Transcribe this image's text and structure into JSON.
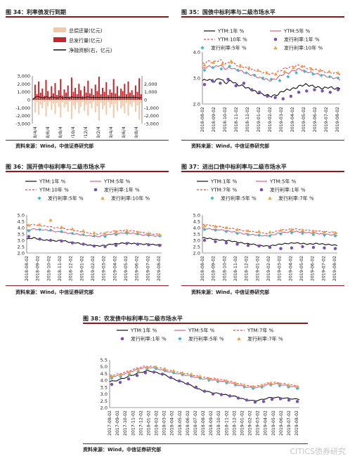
{
  "figures": {
    "fig34": {
      "title": "图 34：利率债发行到期",
      "source": "资料来源：Wind，中信证券研究部"
    },
    "fig35": {
      "title": "图 35：国债中标利率与二级市场水平",
      "source": "资料来源：Wind，中信证券研究部"
    },
    "fig36": {
      "title": "图 36：国开债中标利率与二级市场水平",
      "source": "资料来源：Wind，中信证券研究部"
    },
    "fig37": {
      "title": "图 37：进出口债中标利率与二级市场水平",
      "source": "资料来源：Wind，中信证券研究部"
    },
    "fig38": {
      "title": "图 38：农发债中标利率与二级市场水平",
      "source": "资料来源：Wind，中信证券研究部"
    }
  },
  "watermark": "CITICS债券研究",
  "colors": {
    "accent": "#8b1a1a",
    "ytm_short": "#111111",
    "ytm_mid": "#e0607a",
    "ytm_long": "#e05050",
    "auction_short": "#7a4fb0",
    "auction_mid": "#40b8c8",
    "auction_long": "#f0a040",
    "maturity_bar": "#f2c9a8",
    "issuance_bar": "#c0282e"
  },
  "chart_data": [
    {
      "id": "fig34",
      "type": "bar",
      "x_ticks": [
        "2018/4/4",
        "2018/6/4",
        "2018/8/4",
        "2018/10/4",
        "2018/12/4",
        "2019/2/4",
        "2019/4/4",
        "2019/6/4",
        "2019/8/4"
      ],
      "ylim_left": [
        -3000,
        3000
      ],
      "yticks_left": [
        3000,
        2000,
        1000,
        0,
        -1000,
        -2000,
        -3000
      ],
      "ylim_right": [
        -3000,
        3000
      ],
      "yticks_right": [
        2000,
        1000,
        0,
        -1000,
        -2000,
        -3000
      ],
      "legend": [
        "总偿还量(亿元)",
        "总发行量(亿元)",
        "净融资额(右，亿元)"
      ],
      "series": [
        {
          "name": "总偿还量(亿元)",
          "values": [
            -120,
            -1600,
            -300,
            -1900,
            -600,
            -1100,
            -300,
            -2100,
            -800,
            -200,
            -1300,
            -500,
            -1800,
            -400,
            -900,
            -2200,
            -300,
            -1000,
            -600,
            -1500,
            -200,
            -2400,
            -700,
            -1200,
            -400,
            -1700,
            -900,
            -300,
            -1400,
            -600,
            -2000,
            -500,
            -1100,
            -300,
            -1600,
            -800,
            -2600,
            -400,
            -1200,
            -700,
            -1900,
            -300,
            -1000,
            -600,
            -2300,
            -500,
            -1400,
            -200,
            -1100,
            -800,
            -1700,
            -400,
            -2000,
            -600,
            -900,
            -300,
            -1500,
            -700,
            -2500,
            -400
          ]
        },
        {
          "name": "总发行量(亿元)",
          "values": [
            200,
            1900,
            700,
            2300,
            900,
            1400,
            500,
            2500,
            1100,
            400,
            1700,
            800,
            2100,
            600,
            1200,
            2600,
            500,
            1300,
            900,
            1800,
            400,
            2800,
            1000,
            1500,
            700,
            2000,
            1200,
            500,
            1700,
            900,
            2400,
            800,
            1400,
            600,
            1900,
            1100,
            2900,
            700,
            1500,
            1000,
            2200,
            600,
            1300,
            900,
            2600,
            800,
            1700,
            500,
            1400,
            1100,
            2000,
            700,
            2300,
            900,
            1200,
            600,
            1800,
            1000,
            2700,
            700
          ]
        },
        {
          "name": "净融资额(右，亿元)",
          "values": [
            80,
            300,
            400,
            400,
            300,
            300,
            200,
            400,
            300,
            200,
            400,
            300,
            300,
            200,
            300,
            400,
            200,
            300,
            300,
            300,
            200,
            400,
            300,
            300,
            300,
            300,
            300,
            200,
            300,
            300,
            400,
            300,
            300,
            300,
            300,
            300,
            300,
            300,
            300,
            300,
            300,
            300,
            300,
            300,
            300,
            300,
            300,
            300,
            300,
            300,
            300,
            300,
            300,
            300,
            300,
            300,
            300,
            300,
            200,
            300
          ]
        }
      ]
    },
    {
      "id": "fig35",
      "type": "scatter",
      "x_ticks": [
        "2018-08-02",
        "2018-09-02",
        "2018-10-02",
        "2018-11-02",
        "2018-12-02",
        "2019-01-02",
        "2019-02-02",
        "2019-03-02",
        "2019-04-02",
        "2019-05-02",
        "2019-06-02",
        "2019-07-02",
        "2019-08-02"
      ],
      "ylim": [
        2.0,
        4.0
      ],
      "yticks": [
        2.0,
        3.0,
        4.0
      ],
      "legend": [
        "YTM:1年 %",
        "YTM:5年 %",
        "YTM:10年 %",
        "发行利率:1年 %",
        "发行利率:5年 %",
        "发行利率:10年 %"
      ],
      "series": [
        {
          "name": "YTM:1年 %",
          "kind": "line",
          "values": [
            2.9,
            2.95,
            2.85,
            3.0,
            2.8,
            2.9,
            2.75,
            2.7,
            2.6,
            2.5,
            2.4,
            2.35,
            2.3,
            2.35,
            2.5,
            2.55,
            2.6,
            2.7,
            2.75,
            2.7,
            2.65,
            2.6,
            2.65,
            2.6,
            2.6
          ]
        },
        {
          "name": "YTM:5年 %",
          "kind": "line",
          "values": [
            3.35,
            3.45,
            3.4,
            3.5,
            3.35,
            3.4,
            3.3,
            3.25,
            3.15,
            3.1,
            3.0,
            2.95,
            2.9,
            3.0,
            3.15,
            3.2,
            3.3,
            3.35,
            3.25,
            3.2,
            3.15,
            3.1,
            3.05,
            3.0,
            2.95
          ]
        },
        {
          "name": "YTM:10年 %",
          "kind": "line",
          "values": [
            3.55,
            3.65,
            3.6,
            3.7,
            3.55,
            3.6,
            3.5,
            3.45,
            3.35,
            3.3,
            3.25,
            3.2,
            3.15,
            3.2,
            3.35,
            3.4,
            3.45,
            3.5,
            3.4,
            3.35,
            3.3,
            3.25,
            3.2,
            3.2,
            3.15
          ]
        },
        {
          "name": "发行利率:1年 %",
          "kind": "scatter",
          "values": [
            2.75,
            2.9,
            2.8,
            2.95,
            2.7,
            2.8,
            2.55,
            2.45,
            2.3,
            2.25,
            2.2,
            2.3,
            2.45,
            2.5,
            2.55,
            2.5,
            2.45,
            2.55
          ]
        },
        {
          "name": "发行利率:5年 %",
          "kind": "scatter",
          "values": [
            3.3,
            3.4,
            3.35,
            3.45,
            3.3,
            3.2,
            3.1,
            3.0,
            2.95,
            2.9,
            3.05,
            3.2,
            3.25,
            3.15,
            3.1,
            3.05,
            3.0
          ]
        },
        {
          "name": "发行利率:10年 %",
          "kind": "scatter",
          "values": [
            3.5,
            3.6,
            3.55,
            3.65,
            3.45,
            3.4,
            3.3,
            3.2,
            3.15,
            3.25,
            3.4,
            3.45,
            3.35,
            3.3,
            3.25,
            3.2
          ]
        }
      ]
    },
    {
      "id": "fig36",
      "type": "scatter",
      "x_ticks": [
        "2018-08-02",
        "2018-09-02",
        "2018-10-02",
        "2018-11-02",
        "2018-12-02",
        "2019-01-02",
        "2019-02-02",
        "2019-03-02",
        "2019-04-02",
        "2019-05-02",
        "2019-06-02",
        "2019-07-02",
        "2019-08-02"
      ],
      "ylim": [
        2.0,
        5.0
      ],
      "yticks": [
        2.0,
        2.5,
        3.0,
        3.5,
        4.0,
        4.5,
        5.0
      ],
      "legend": [
        "YTM:1年 %",
        "YTM:5年 %",
        "YTM:10年 %",
        "发行利率:1年 %",
        "发行利率:5年 %",
        "发行利率:10年 %"
      ],
      "series": [
        {
          "name": "YTM:1年 %",
          "kind": "line",
          "values": [
            3.1,
            3.2,
            3.05,
            3.0,
            2.95,
            3.0,
            2.85,
            2.8,
            2.7,
            2.6,
            2.55,
            2.6,
            2.7,
            2.75,
            2.8,
            2.75,
            2.7,
            2.7,
            2.65,
            2.65
          ]
        },
        {
          "name": "YTM:5年 %",
          "kind": "line",
          "values": [
            3.8,
            3.9,
            3.85,
            3.8,
            3.7,
            3.65,
            3.55,
            3.5,
            3.4,
            3.35,
            3.3,
            3.4,
            3.5,
            3.55,
            3.6,
            3.55,
            3.45,
            3.4,
            3.35,
            3.35
          ]
        },
        {
          "name": "YTM:10年 %",
          "kind": "line",
          "values": [
            4.2,
            4.25,
            4.15,
            4.1,
            4.0,
            3.95,
            3.85,
            3.75,
            3.65,
            3.55,
            3.5,
            3.6,
            3.7,
            3.75,
            3.8,
            3.75,
            3.65,
            3.55,
            3.5,
            3.45
          ]
        },
        {
          "name": "发行利率:1年 %",
          "kind": "scatter",
          "values": [
            3.3,
            3.1,
            3.0,
            2.95,
            2.8,
            2.7,
            2.55,
            2.5,
            2.6,
            2.75,
            2.7,
            2.65,
            2.6
          ]
        },
        {
          "name": "发行利率:5年 %",
          "kind": "scatter",
          "values": [
            3.75,
            3.85,
            3.8,
            3.7,
            3.55,
            3.45,
            3.35,
            3.3,
            3.45,
            3.55,
            3.5,
            3.4,
            3.35
          ]
        },
        {
          "name": "发行利率:10年 %",
          "kind": "scatter",
          "values": [
            4.2,
            4.25,
            4.6,
            4.05,
            3.9,
            3.75,
            3.6,
            3.55,
            3.7,
            3.75,
            3.65,
            3.55,
            3.45
          ]
        }
      ]
    },
    {
      "id": "fig37",
      "type": "scatter",
      "x_ticks": [
        "2018-08-02",
        "2018-09-02",
        "2018-10-02",
        "2018-11-02",
        "2018-12-02",
        "2019-01-02",
        "2019-02-02",
        "2019-03-02",
        "2019-04-02",
        "2019-05-02",
        "2019-06-02",
        "2019-07-02",
        "2019-08-02"
      ],
      "ylim": [
        2.0,
        5.0
      ],
      "yticks": [
        2.0,
        2.5,
        3.0,
        3.5,
        4.0,
        4.5,
        5.0
      ],
      "legend": [
        "YTM:1年 %",
        "YTM:5年 %",
        "YTM:7年 %",
        "发行利率:1年 %",
        "发行利率:5年 %",
        "发行利率:7年 %"
      ],
      "series": [
        {
          "name": "YTM:1年 %",
          "kind": "line",
          "values": [
            3.2,
            3.15,
            3.05,
            3.0,
            2.95,
            2.85,
            2.75,
            2.7,
            2.6,
            2.55,
            2.6,
            2.7,
            2.75,
            2.8,
            2.75,
            2.7,
            2.75,
            2.7,
            2.65,
            2.6
          ]
        },
        {
          "name": "YTM:5年 %",
          "kind": "line",
          "values": [
            3.95,
            3.9,
            3.85,
            3.8,
            3.7,
            3.6,
            3.5,
            3.45,
            3.4,
            3.35,
            3.45,
            3.6,
            3.65,
            3.7,
            3.65,
            3.6,
            3.55,
            3.5,
            3.45,
            3.4
          ]
        },
        {
          "name": "YTM:7年 %",
          "kind": "line",
          "values": [
            4.25,
            4.2,
            4.1,
            4.05,
            3.95,
            3.85,
            3.75,
            3.7,
            3.6,
            3.55,
            3.65,
            3.8,
            3.85,
            3.9,
            3.85,
            3.8,
            3.75,
            3.7,
            3.65,
            3.6
          ]
        },
        {
          "name": "发行利率:1年 %",
          "kind": "scatter",
          "values": [
            3.0,
            2.9,
            2.8,
            2.7,
            2.6,
            2.55,
            2.45,
            2.35,
            2.4,
            2.5,
            2.45,
            2.4,
            2.35
          ]
        },
        {
          "name": "发行利率:5年 %",
          "kind": "scatter",
          "values": [
            3.85,
            3.8,
            3.7,
            3.55,
            3.45,
            3.4,
            3.35,
            3.5,
            3.6,
            3.55,
            3.45,
            3.4,
            3.35
          ]
        },
        {
          "name": "发行利率:7年 %",
          "kind": "scatter",
          "values": [
            4.15,
            4.1,
            4.0,
            3.85,
            3.75,
            3.7,
            3.65,
            3.8,
            3.85,
            3.8,
            3.7,
            3.65,
            3.6
          ]
        }
      ]
    },
    {
      "id": "fig38",
      "type": "scatter",
      "x_ticks": [
        "2017-08-02",
        "2017-09-02",
        "2017-10-02",
        "2017-11-02",
        "2017-12-02",
        "2018-01-02",
        "2018-02-02",
        "2018-03-02",
        "2018-04-02",
        "2018-05-02",
        "2018-06-02",
        "2018-07-02",
        "2018-08-02",
        "2018-09-02",
        "2018-10-02",
        "2018-11-02",
        "2018-12-02",
        "2019-01-02",
        "2019-02-02",
        "2019-03-02",
        "2019-04-02",
        "2019-05-02",
        "2019-06-02",
        "2019-07-02",
        "2019-08-02"
      ],
      "ylim": [
        2.0,
        5.5
      ],
      "yticks": [
        2.0,
        2.5,
        3.0,
        3.5,
        4.0,
        4.5,
        5.0,
        5.5
      ],
      "legend": [
        "YTM:1年 %",
        "YTM:5年 %",
        "YTM:7年 %",
        "发行利率:1年 %",
        "发行利率:5年 %",
        "发行利率:7年 %"
      ],
      "series": [
        {
          "name": "YTM:1年 %",
          "kind": "line",
          "values": [
            3.9,
            4.0,
            4.2,
            4.4,
            4.6,
            4.7,
            4.55,
            4.4,
            4.1,
            3.9,
            3.7,
            3.4,
            3.2,
            3.1,
            3.0,
            2.9,
            2.8,
            2.6,
            2.5,
            2.55,
            2.7,
            2.75,
            2.7,
            2.65,
            2.6
          ]
        },
        {
          "name": "YTM:5年 %",
          "kind": "line",
          "values": [
            4.25,
            4.35,
            4.5,
            4.7,
            4.9,
            4.95,
            4.85,
            4.7,
            4.55,
            4.45,
            4.35,
            4.2,
            4.1,
            4.05,
            3.95,
            3.85,
            3.7,
            3.55,
            3.45,
            3.5,
            3.7,
            3.75,
            3.65,
            3.55,
            3.45
          ]
        },
        {
          "name": "YTM:7年 %",
          "kind": "line",
          "values": [
            4.35,
            4.45,
            4.6,
            4.8,
            5.0,
            5.05,
            4.95,
            4.8,
            4.65,
            4.55,
            4.45,
            4.3,
            4.2,
            4.15,
            4.05,
            3.95,
            3.8,
            3.65,
            3.55,
            3.6,
            3.8,
            3.85,
            3.75,
            3.65,
            3.55
          ]
        },
        {
          "name": "发行利率:1年 %",
          "kind": "scatter",
          "values": [
            3.7,
            3.85,
            4.1,
            4.35,
            4.55,
            4.6,
            4.45,
            4.2,
            3.95,
            3.75,
            3.5,
            3.2,
            3.0,
            2.95,
            2.85,
            2.7,
            2.55,
            2.4,
            2.45,
            2.6,
            2.65,
            2.55,
            2.45
          ]
        },
        {
          "name": "发行利率:5年 %",
          "kind": "scatter",
          "values": [
            4.15,
            4.25,
            4.4,
            4.6,
            4.8,
            4.85,
            4.7,
            4.55,
            4.4,
            4.3,
            4.15,
            4.0,
            3.9,
            3.8,
            3.65,
            3.5,
            3.4,
            3.5,
            3.65,
            3.6,
            3.5,
            3.4
          ]
        },
        {
          "name": "发行利率:7年 %",
          "kind": "scatter",
          "values": [
            4.3,
            4.4,
            4.55,
            4.75,
            4.95,
            5.0,
            4.85,
            4.7,
            4.55,
            4.45,
            4.3,
            4.15,
            4.05,
            3.95,
            3.8,
            3.65,
            3.55,
            3.65,
            3.8,
            3.75,
            3.65,
            3.55
          ]
        }
      ]
    }
  ]
}
